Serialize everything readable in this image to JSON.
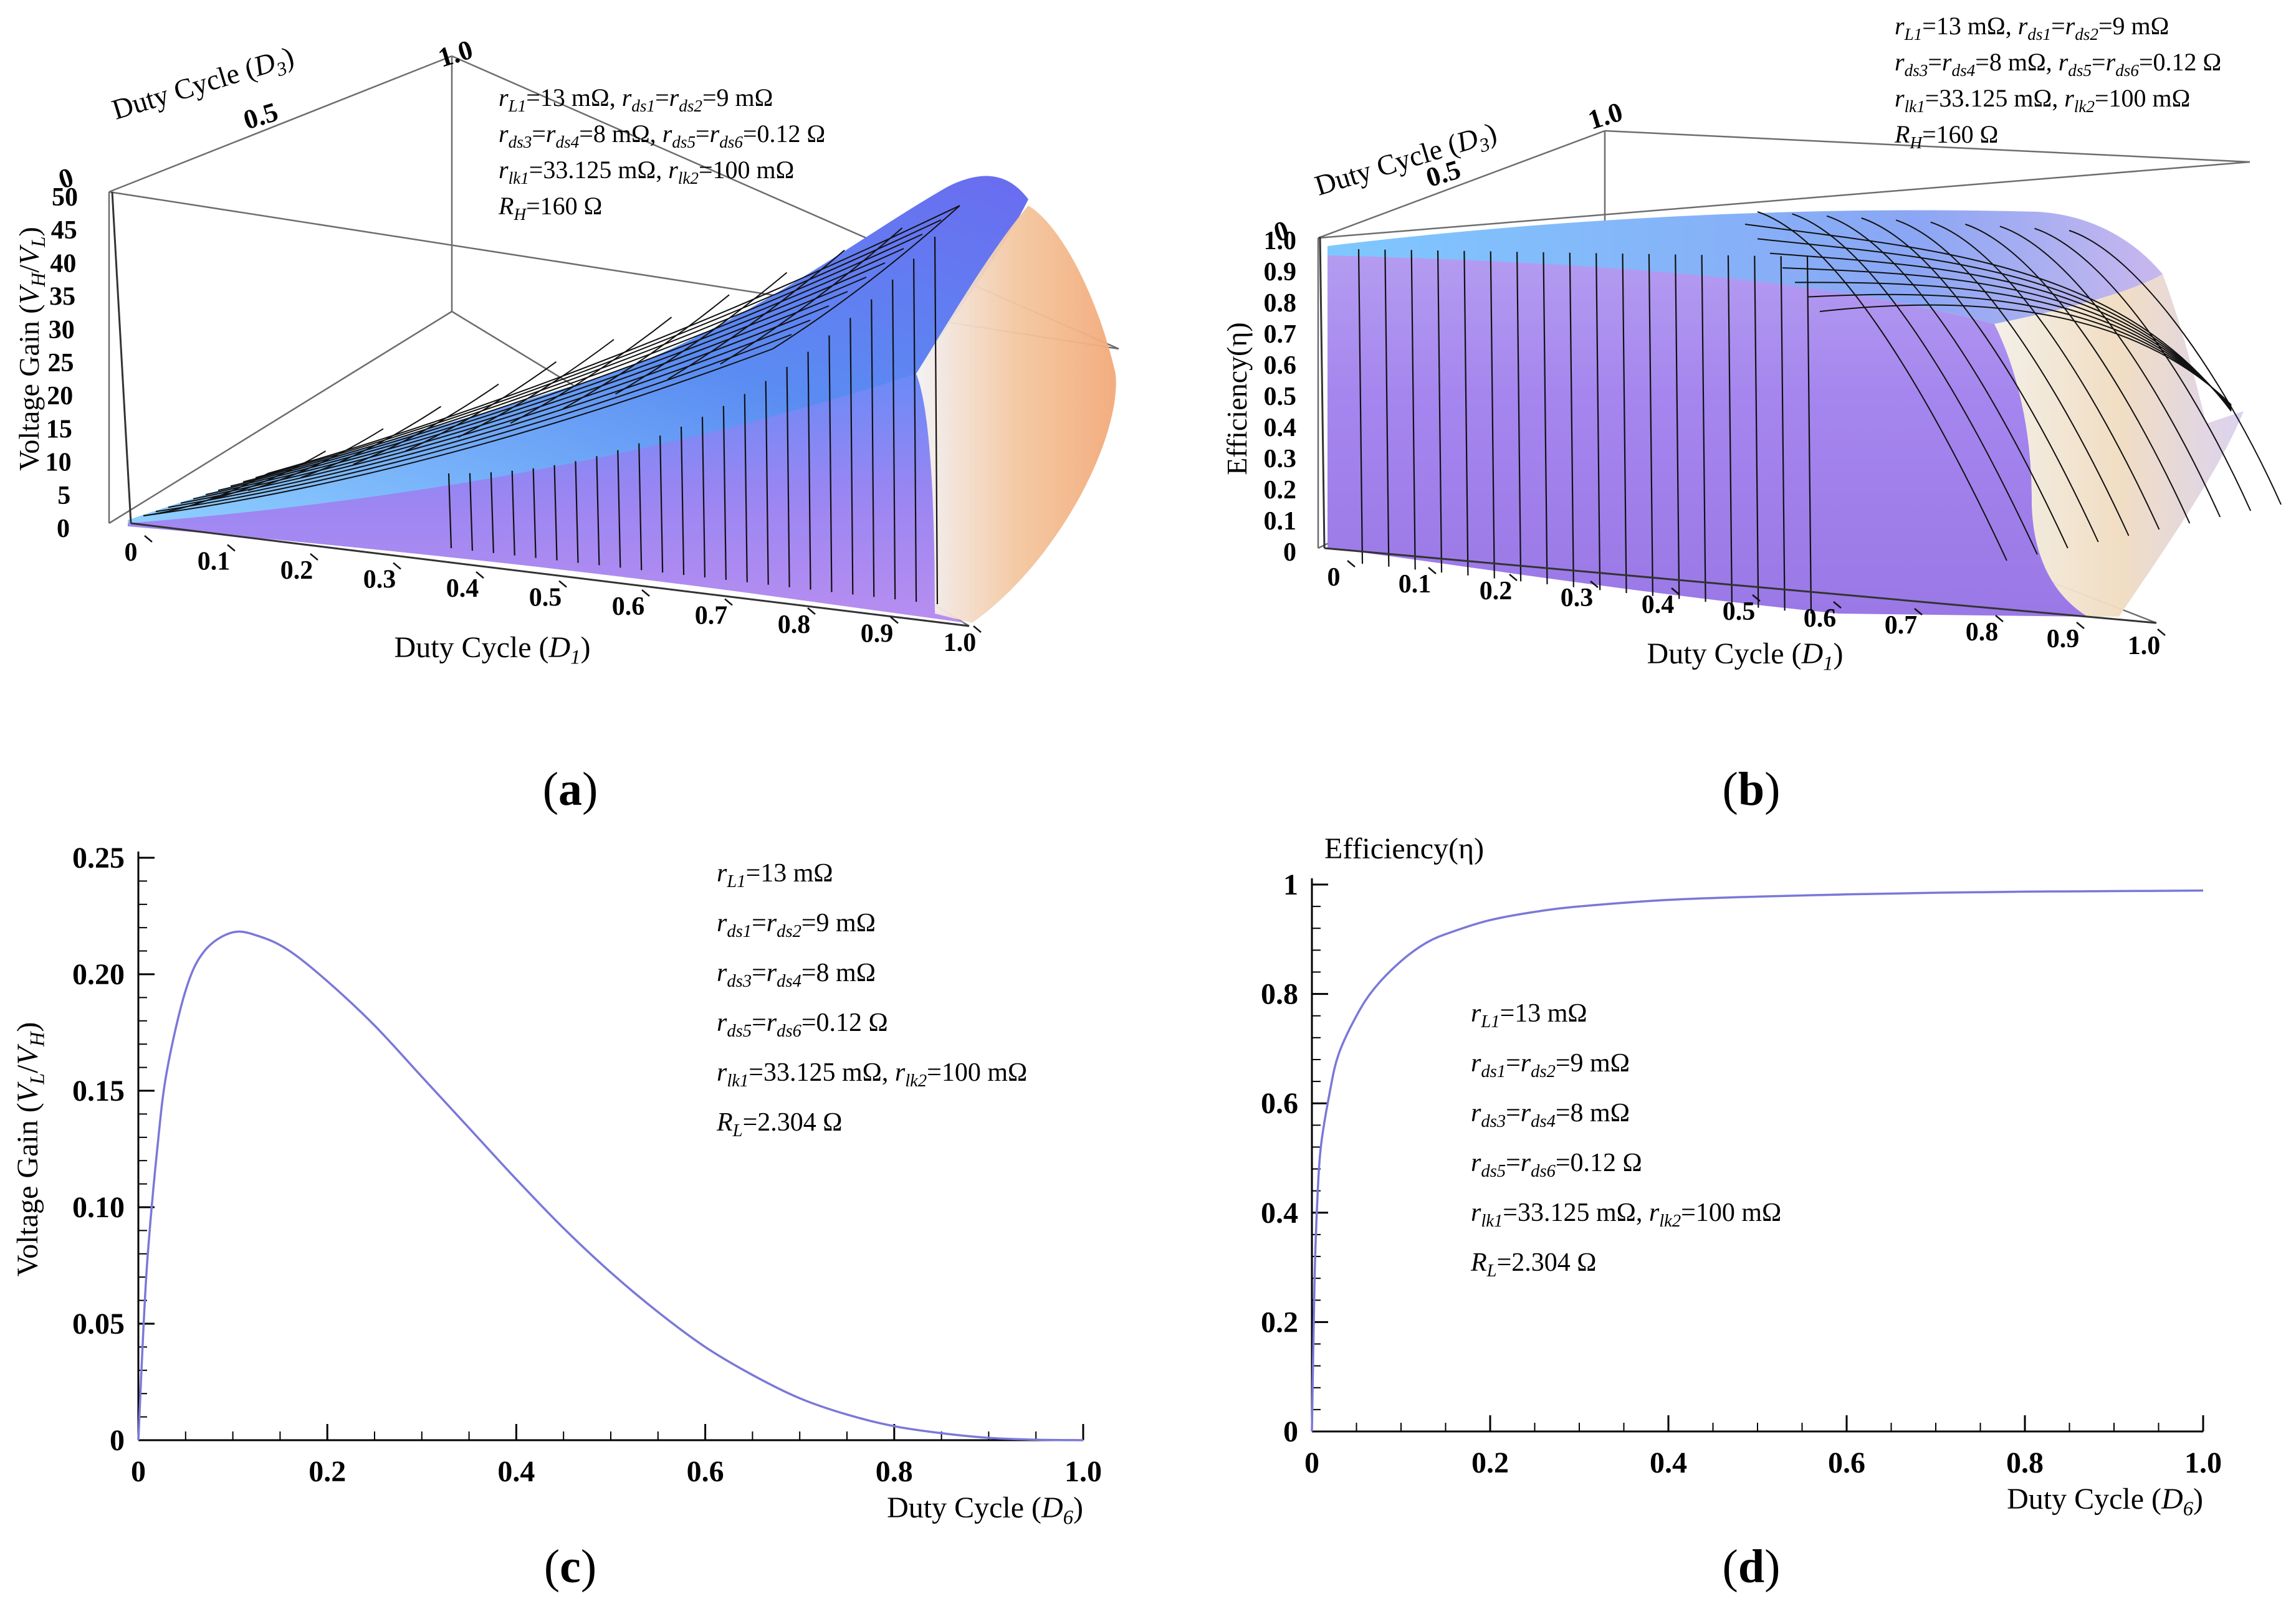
{
  "panels": {
    "a": {
      "label": "a"
    },
    "b": {
      "label": "b"
    },
    "c": {
      "label": "c"
    },
    "d": {
      "label": "d"
    }
  },
  "chart_data": [
    {
      "id": "a",
      "type": "surface3d",
      "zlabel": "Voltage Gain (V_H/V_L)",
      "xlabel": "Duty Cycle (D_1)",
      "ylabel": "Duty Cycle (D_3)",
      "x_ticks": [
        "0",
        "0.1",
        "0.2",
        "0.3",
        "0.4",
        "0.5",
        "0.6",
        "0.7",
        "0.8",
        "0.9",
        "1.0"
      ],
      "y_ticks": [
        "0",
        "0.5",
        "1.0"
      ],
      "z_ticks": [
        "0",
        "5",
        "10",
        "15",
        "20",
        "25",
        "30",
        "35",
        "40",
        "45",
        "50"
      ],
      "xlim": [
        0,
        1
      ],
      "ylim": [
        0,
        1
      ],
      "zlim": [
        0,
        50
      ],
      "annotation": [
        "r_L1=13 mΩ, r_ds1=r_ds2=9 mΩ",
        "r_ds3=r_ds4=8 mΩ, r_ds5=r_ds6=0.12 Ω",
        "r_lk1=33.125 mΩ, r_lk2=100 mΩ",
        "R_H=160 Ω"
      ],
      "surface_peak": {
        "D1": 0.93,
        "D3": 1.0,
        "gain": 45
      }
    },
    {
      "id": "b",
      "type": "surface3d",
      "zlabel": "Efficiency(η)",
      "xlabel": "Duty Cycle (D_1)",
      "ylabel": "Duty Cycle (D_3)",
      "x_ticks": [
        "0",
        "0.1",
        "0.2",
        "0.3",
        "0.4",
        "0.5",
        "0.6",
        "0.7",
        "0.8",
        "0.9",
        "1.0"
      ],
      "y_ticks": [
        "0",
        "0.5",
        "1.0"
      ],
      "z_ticks": [
        "0",
        "0.1",
        "0.2",
        "0.3",
        "0.4",
        "0.5",
        "0.6",
        "0.7",
        "0.8",
        "0.9",
        "1.0"
      ],
      "xlim": [
        0,
        1
      ],
      "ylim": [
        0,
        1
      ],
      "zlim": [
        0,
        1
      ],
      "annotation": [
        "r_L1=13 mΩ, r_ds1=r_ds2=9 mΩ",
        "r_ds3=r_ds4=8 mΩ, r_ds5=r_ds6=0.12 Ω",
        "r_lk1=33.125 mΩ, r_lk2=100 mΩ",
        "R_H=160 Ω"
      ],
      "plateau": 0.97
    },
    {
      "id": "c",
      "type": "line",
      "ylabel": "Voltage Gain (V_L/V_H)",
      "xlabel": "Duty Cycle (D_6)",
      "xlim": [
        0,
        1
      ],
      "ylim": [
        0,
        0.25
      ],
      "x_ticks": [
        "0",
        "0.2",
        "0.4",
        "0.6",
        "0.8",
        "1.0"
      ],
      "y_ticks": [
        "0",
        "0.05",
        "0.10",
        "0.15",
        "0.20",
        "0.25"
      ],
      "annotation": [
        "r_L1=13 mΩ",
        "r_ds1=r_ds2=9 mΩ",
        "r_ds3=r_ds4=8 mΩ",
        "r_ds5=r_ds6=0.12  Ω",
        "r_lk1=33.125 mΩ, r_lk2=100 mΩ",
        "R_L=2.304 Ω"
      ],
      "color": "#7a78d8",
      "series": [
        {
          "x": [
            0,
            0.005,
            0.01,
            0.02,
            0.03,
            0.05,
            0.07,
            0.1,
            0.13,
            0.16,
            0.2,
            0.25,
            0.3,
            0.35,
            0.4,
            0.45,
            0.5,
            0.55,
            0.6,
            0.65,
            0.7,
            0.75,
            0.8,
            0.85,
            0.9,
            0.95,
            1.0
          ],
          "y": [
            0,
            0.045,
            0.08,
            0.125,
            0.158,
            0.193,
            0.21,
            0.218,
            0.216,
            0.21,
            0.197,
            0.178,
            0.156,
            0.134,
            0.112,
            0.091,
            0.072,
            0.055,
            0.04,
            0.028,
            0.018,
            0.011,
            0.006,
            0.003,
            0.001,
            0.0002,
            0
          ]
        }
      ]
    },
    {
      "id": "d",
      "type": "line",
      "ylabel": "Efficiency(η)",
      "xlabel": "Duty Cycle (D_6)",
      "xlim": [
        0,
        1
      ],
      "ylim": [
        0,
        1
      ],
      "x_ticks": [
        "0",
        "0.2",
        "0.4",
        "0.6",
        "0.8",
        "1.0"
      ],
      "y_ticks": [
        "0",
        "0.2",
        "0.4",
        "0.6",
        "0.8",
        "1"
      ],
      "annotation": [
        "r_L1=13 mΩ",
        "r_ds1=r_ds2=9 mΩ",
        "r_ds3=r_ds4=8 mΩ",
        "r_ds5=r_ds6=0.12  Ω",
        "r_lk1=33.125 mΩ, r_lk2=100 mΩ",
        "R_L=2.304 Ω"
      ],
      "color": "#7a78d8",
      "series": [
        {
          "x": [
            0,
            0.003,
            0.006,
            0.01,
            0.02,
            0.03,
            0.05,
            0.07,
            0.1,
            0.13,
            0.16,
            0.2,
            0.25,
            0.3,
            0.4,
            0.5,
            0.6,
            0.7,
            0.8,
            0.9,
            1.0
          ],
          "y": [
            0,
            0.28,
            0.42,
            0.52,
            0.62,
            0.69,
            0.76,
            0.81,
            0.86,
            0.895,
            0.915,
            0.935,
            0.95,
            0.96,
            0.972,
            0.978,
            0.982,
            0.985,
            0.987,
            0.988,
            0.989
          ]
        }
      ]
    }
  ]
}
